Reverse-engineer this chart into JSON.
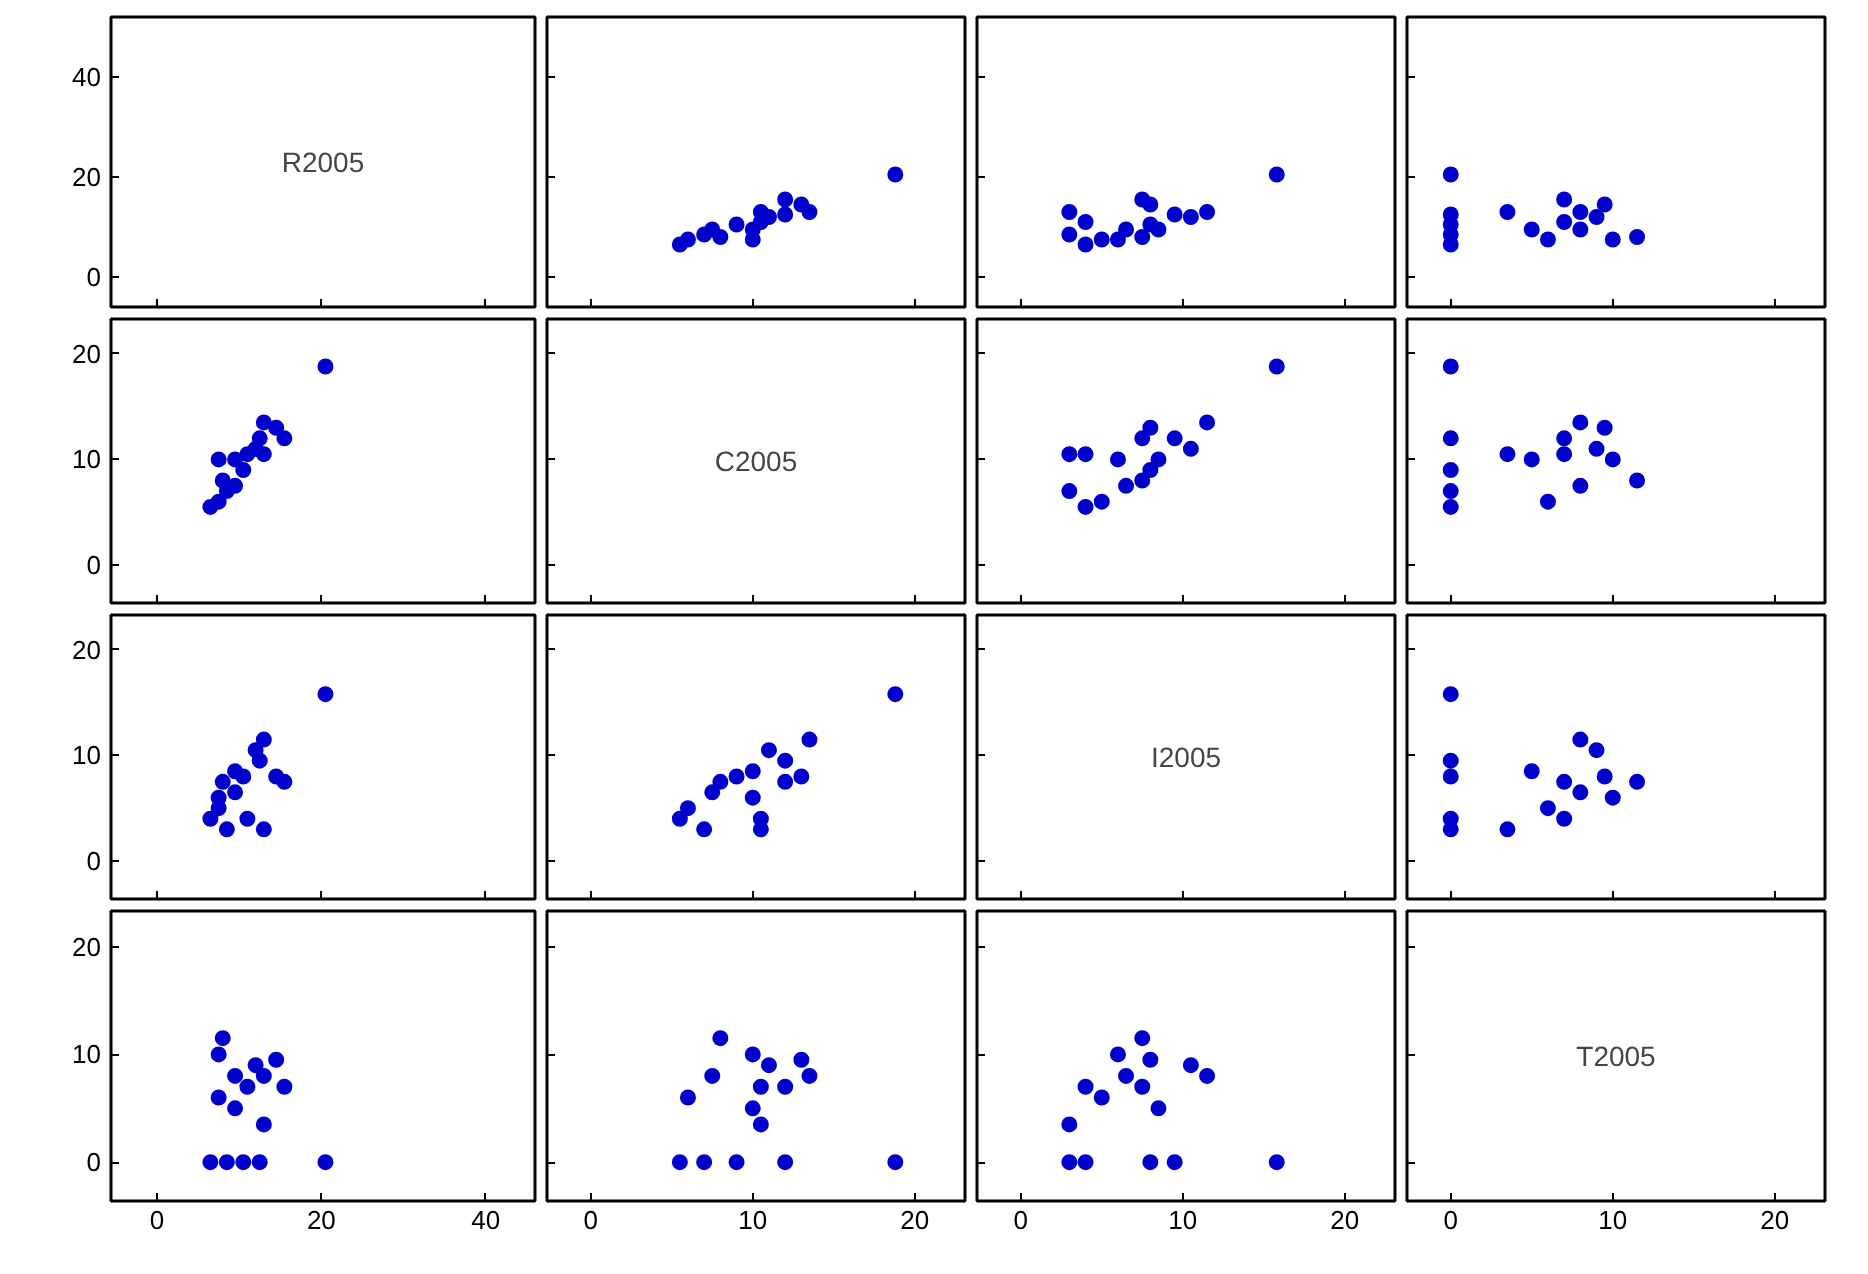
{
  "chart_data": [
    {
      "type": "scatter",
      "annotations": [
        "R2005"
      ],
      "xlim": [
        -5.6,
        46
      ],
      "xticks": [
        0,
        20,
        40
      ],
      "ylim": [
        -6,
        52
      ],
      "yticks": [
        0,
        20,
        40
      ],
      "tick_labels": "y"
    },
    {
      "type": "scatter",
      "color": "#0000cc",
      "marker": "circle",
      "x": [
        18.8,
        5.5,
        7,
        9,
        12,
        6,
        8,
        7.5,
        10,
        10.5,
        10.5,
        11,
        13.5,
        13,
        12,
        10
      ],
      "values": [
        20.5,
        6.5,
        8.5,
        10.5,
        12.5,
        7.5,
        8,
        9.5,
        9.5,
        11,
        13,
        12,
        13,
        14.5,
        15.5,
        7.5
      ],
      "xlim": [
        -2.7,
        23.1
      ],
      "xticks": [
        0,
        10,
        20
      ],
      "ylim": [
        -6,
        52
      ],
      "yticks": [
        0,
        20,
        40
      ],
      "tick_labels": false
    },
    {
      "type": "scatter",
      "color": "#0000cc",
      "marker": "circle",
      "x": [
        15.8,
        4,
        3,
        8,
        9.5,
        5,
        7.5,
        6.5,
        8.5,
        4,
        3,
        10.5,
        11.5,
        8,
        7.5,
        6
      ],
      "values": [
        20.5,
        6.5,
        8.5,
        10.5,
        12.5,
        7.5,
        8,
        9.5,
        9.5,
        11,
        13,
        12,
        13,
        14.5,
        15.5,
        7.5
      ],
      "xlim": [
        -2.7,
        23.1
      ],
      "xticks": [
        0,
        10,
        20
      ],
      "ylim": [
        -6,
        52
      ],
      "yticks": [
        0,
        20,
        40
      ],
      "tick_labels": false
    },
    {
      "type": "scatter",
      "color": "#0000cc",
      "marker": "circle",
      "x": [
        0,
        0,
        0,
        0,
        0,
        6,
        11.5,
        8,
        5,
        7,
        3.5,
        9,
        8,
        9.5,
        7,
        10
      ],
      "values": [
        20.5,
        6.5,
        8.5,
        10.5,
        12.5,
        7.5,
        8,
        9.5,
        9.5,
        11,
        13,
        12,
        13,
        14.5,
        15.5,
        7.5
      ],
      "xlim": [
        -2.7,
        23.1
      ],
      "xticks": [
        0,
        10,
        20
      ],
      "ylim": [
        -6,
        52
      ],
      "yticks": [
        0,
        20,
        40
      ],
      "tick_labels": false
    },
    {
      "type": "scatter",
      "color": "#0000cc",
      "marker": "circle",
      "x": [
        20.5,
        6.5,
        8.5,
        10.5,
        12.5,
        7.5,
        8,
        9.5,
        9.5,
        11,
        13,
        12,
        13,
        14.5,
        15.5,
        7.5
      ],
      "values": [
        18.8,
        5.5,
        7,
        9,
        12,
        6,
        8,
        7.5,
        10,
        10.5,
        10.5,
        11,
        13.5,
        13,
        12,
        10
      ],
      "xlim": [
        -5.6,
        46
      ],
      "xticks": [
        0,
        20,
        40
      ],
      "ylim": [
        -3.6,
        23.3
      ],
      "yticks": [
        0,
        10,
        20
      ],
      "tick_labels": "y"
    },
    {
      "type": "scatter",
      "annotations": [
        "C2005"
      ],
      "xlim": [
        -2.7,
        23.1
      ],
      "xticks": [
        0,
        10,
        20
      ],
      "ylim": [
        -3.6,
        23.3
      ],
      "yticks": [
        0,
        10,
        20
      ],
      "tick_labels": false
    },
    {
      "type": "scatter",
      "color": "#0000cc",
      "marker": "circle",
      "x": [
        15.8,
        4,
        3,
        8,
        9.5,
        5,
        7.5,
        6.5,
        8.5,
        4,
        3,
        10.5,
        11.5,
        8,
        7.5,
        6
      ],
      "values": [
        18.8,
        5.5,
        7,
        9,
        12,
        6,
        8,
        7.5,
        10,
        10.5,
        10.5,
        11,
        13.5,
        13,
        12,
        10
      ],
      "xlim": [
        -2.7,
        23.1
      ],
      "xticks": [
        0,
        10,
        20
      ],
      "ylim": [
        -3.6,
        23.3
      ],
      "yticks": [
        0,
        10,
        20
      ],
      "tick_labels": false
    },
    {
      "type": "scatter",
      "color": "#0000cc",
      "marker": "circle",
      "x": [
        0,
        0,
        0,
        0,
        0,
        6,
        11.5,
        8,
        5,
        7,
        3.5,
        9,
        8,
        9.5,
        7,
        10
      ],
      "values": [
        18.8,
        5.5,
        7,
        9,
        12,
        6,
        8,
        7.5,
        10,
        10.5,
        10.5,
        11,
        13.5,
        13,
        12,
        10
      ],
      "xlim": [
        -2.7,
        23.1
      ],
      "xticks": [
        0,
        10,
        20
      ],
      "ylim": [
        -3.6,
        23.3
      ],
      "yticks": [
        0,
        10,
        20
      ],
      "tick_labels": false
    },
    {
      "type": "scatter",
      "color": "#0000cc",
      "marker": "circle",
      "x": [
        20.5,
        6.5,
        8.5,
        10.5,
        12.5,
        7.5,
        8,
        9.5,
        9.5,
        11,
        13,
        12,
        13,
        14.5,
        15.5,
        7.5
      ],
      "values": [
        15.8,
        4,
        3,
        8,
        9.5,
        5,
        7.5,
        6.5,
        8.5,
        4,
        3,
        10.5,
        11.5,
        8,
        7.5,
        6
      ],
      "xlim": [
        -5.6,
        46
      ],
      "xticks": [
        0,
        20,
        40
      ],
      "ylim": [
        -3.6,
        23.3
      ],
      "yticks": [
        0,
        10,
        20
      ],
      "tick_labels": "y"
    },
    {
      "type": "scatter",
      "color": "#0000cc",
      "marker": "circle",
      "x": [
        18.8,
        5.5,
        7,
        9,
        12,
        6,
        8,
        7.5,
        10,
        10.5,
        10.5,
        11,
        13.5,
        13,
        12,
        10
      ],
      "values": [
        15.8,
        4,
        3,
        8,
        9.5,
        5,
        7.5,
        6.5,
        8.5,
        4,
        3,
        10.5,
        11.5,
        8,
        7.5,
        6
      ],
      "xlim": [
        -2.7,
        23.1
      ],
      "xticks": [
        0,
        10,
        20
      ],
      "ylim": [
        -3.6,
        23.3
      ],
      "yticks": [
        0,
        10,
        20
      ],
      "tick_labels": false
    },
    {
      "type": "scatter",
      "annotations": [
        "I2005"
      ],
      "xlim": [
        -2.7,
        23.1
      ],
      "xticks": [
        0,
        10,
        20
      ],
      "ylim": [
        -3.6,
        23.3
      ],
      "yticks": [
        0,
        10,
        20
      ],
      "tick_labels": false
    },
    {
      "type": "scatter",
      "color": "#0000cc",
      "marker": "circle",
      "x": [
        0,
        0,
        0,
        0,
        0,
        6,
        11.5,
        8,
        5,
        7,
        3.5,
        9,
        8,
        9.5,
        7,
        10
      ],
      "values": [
        15.8,
        4,
        3,
        8,
        9.5,
        5,
        7.5,
        6.5,
        8.5,
        4,
        3,
        10.5,
        11.5,
        8,
        7.5,
        6
      ],
      "xlim": [
        -2.7,
        23.1
      ],
      "xticks": [
        0,
        10,
        20
      ],
      "ylim": [
        -3.6,
        23.3
      ],
      "yticks": [
        0,
        10,
        20
      ],
      "tick_labels": false
    },
    {
      "type": "scatter",
      "color": "#0000cc",
      "marker": "circle",
      "x": [
        20.5,
        6.5,
        8.5,
        10.5,
        12.5,
        7.5,
        8,
        9.5,
        9.5,
        11,
        13,
        12,
        13,
        14.5,
        15.5,
        7.5
      ],
      "values": [
        0,
        0,
        0,
        0,
        0,
        6,
        11.5,
        8,
        5,
        7,
        3.5,
        9,
        8,
        9.5,
        7,
        10
      ],
      "xlim": [
        -5.6,
        46
      ],
      "xticks": [
        0,
        20,
        40
      ],
      "ylim": [
        -3.6,
        23.3
      ],
      "yticks": [
        0,
        10,
        20
      ]
    },
    {
      "type": "scatter",
      "color": "#0000cc",
      "marker": "circle",
      "x": [
        18.8,
        5.5,
        7,
        9,
        12,
        6,
        8,
        7.5,
        10,
        10.5,
        10.5,
        11,
        13.5,
        13,
        12,
        10
      ],
      "values": [
        0,
        0,
        0,
        0,
        0,
        6,
        11.5,
        8,
        5,
        7,
        3.5,
        9,
        8,
        9.5,
        7,
        10
      ],
      "xlim": [
        -2.7,
        23.1
      ],
      "xticks": [
        0,
        10,
        20
      ],
      "ylim": [
        -3.6,
        23.3
      ],
      "yticks": [
        0,
        10,
        20
      ],
      "tick_labels": "x"
    },
    {
      "type": "scatter",
      "color": "#0000cc",
      "marker": "circle",
      "x": [
        15.8,
        4,
        3,
        8,
        9.5,
        5,
        7.5,
        6.5,
        8.5,
        4,
        3,
        10.5,
        11.5,
        8,
        7.5,
        6
      ],
      "values": [
        0,
        0,
        0,
        0,
        0,
        6,
        11.5,
        8,
        5,
        7,
        3.5,
        9,
        8,
        9.5,
        7,
        10
      ],
      "xlim": [
        -2.7,
        23.1
      ],
      "xticks": [
        0,
        10,
        20
      ],
      "ylim": [
        -3.6,
        23.3
      ],
      "yticks": [
        0,
        10,
        20
      ],
      "tick_labels": "x"
    },
    {
      "type": "scatter",
      "annotations": [
        "T2005"
      ],
      "xlim": [
        -2.7,
        23.1
      ],
      "xticks": [
        0,
        10,
        20
      ],
      "ylim": [
        -3.6,
        23.3
      ],
      "yticks": [
        0,
        10,
        20
      ],
      "tick_labels": "x"
    }
  ]
}
